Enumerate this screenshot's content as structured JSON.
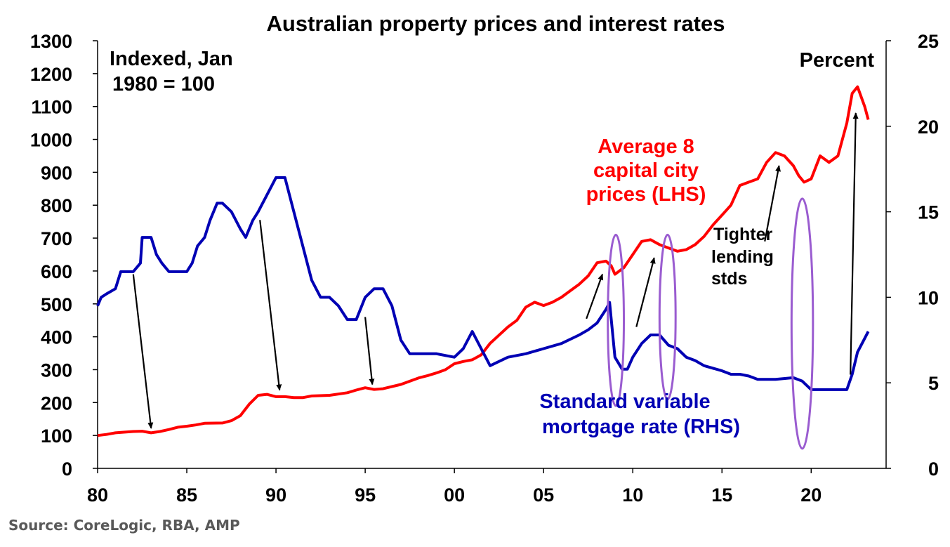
{
  "chart_data": {
    "type": "line",
    "title": "Australian property prices and interest rates",
    "left_axis_label_line1": "Indexed, Jan",
    "left_axis_label_line2": "1980 = 100",
    "right_axis_label": "Percent",
    "ylim_left": [
      0,
      1300
    ],
    "ylim_right": [
      0,
      25
    ],
    "xlim": [
      1980,
      2024.2
    ],
    "left_ticks": [
      0,
      100,
      200,
      300,
      400,
      500,
      600,
      700,
      800,
      900,
      1000,
      1100,
      1200,
      1300
    ],
    "right_ticks": [
      0,
      5,
      10,
      15,
      20,
      25
    ],
    "x_ticks": [
      1980,
      1985,
      1990,
      1995,
      2000,
      2005,
      2010,
      2015,
      2020
    ],
    "x_tick_labels": [
      "80",
      "85",
      "90",
      "95",
      "00",
      "05",
      "10",
      "15",
      "20"
    ],
    "colors": {
      "prices": "#ff0000",
      "rate": "#0000b4",
      "ellipse": "#9a5cd0",
      "arrow": "#000000"
    },
    "series": [
      {
        "name": "Average 8 capital city prices (LHS)",
        "axis": "left",
        "color": "#ff0000",
        "x": [
          1980,
          1980.5,
          1981,
          1982,
          1982.5,
          1983,
          1983.5,
          1984,
          1984.5,
          1985,
          1985.5,
          1986,
          1987,
          1987.5,
          1988,
          1988.5,
          1989,
          1989.5,
          1990,
          1990.5,
          1991,
          1991.5,
          1992,
          1993,
          1994,
          1994.5,
          1995,
          1995.5,
          1996,
          1997,
          1997.5,
          1998,
          1998.5,
          1999,
          1999.5,
          2000,
          2000.5,
          2001,
          2001.5,
          2002,
          2002.5,
          2003,
          2003.5,
          2004,
          2004.5,
          2005,
          2005.5,
          2006,
          2006.5,
          2007,
          2007.5,
          2008,
          2008.5,
          2008.8,
          2009,
          2009.5,
          2010,
          2010.5,
          2011,
          2011.5,
          2012,
          2012.5,
          2013,
          2013.5,
          2014,
          2014.5,
          2015,
          2015.5,
          2016,
          2016.5,
          2017,
          2017.5,
          2018,
          2018.5,
          2019,
          2019.3,
          2019.6,
          2020,
          2020.5,
          2021,
          2021.5,
          2022,
          2022.3,
          2022.6,
          2023,
          2023.2
        ],
        "values": [
          100,
          103,
          108,
          112,
          113,
          108,
          112,
          118,
          125,
          128,
          132,
          137,
          138,
          145,
          160,
          195,
          222,
          225,
          218,
          218,
          215,
          215,
          220,
          222,
          230,
          238,
          245,
          240,
          242,
          255,
          265,
          275,
          282,
          290,
          300,
          318,
          325,
          330,
          345,
          380,
          405,
          430,
          450,
          490,
          505,
          495,
          505,
          520,
          540,
          560,
          585,
          625,
          630,
          615,
          590,
          610,
          650,
          690,
          695,
          680,
          670,
          660,
          665,
          680,
          705,
          740,
          770,
          800,
          860,
          870,
          880,
          930,
          960,
          950,
          920,
          890,
          870,
          880,
          950,
          930,
          950,
          1050,
          1140,
          1160,
          1100,
          1060
        ]
      },
      {
        "name": "Standard variable mortgage rate (RHS)",
        "axis": "right",
        "color": "#0000b4",
        "x": [
          1980,
          1980.2,
          1980.5,
          1981,
          1981.3,
          1982,
          1982.4,
          1982.5,
          1983,
          1983.3,
          1983.6,
          1984,
          1984.5,
          1985,
          1985.3,
          1985.6,
          1986,
          1986.3,
          1986.7,
          1987,
          1987.5,
          1988,
          1988.3,
          1988.7,
          1989,
          1989.5,
          1990,
          1990.5,
          1991,
          1991.5,
          1992,
          1992.5,
          1993,
          1993.5,
          1994,
          1994.5,
          1995,
          1995.5,
          1996,
          1996.5,
          1997,
          1997.5,
          1998,
          1999,
          2000,
          2000.5,
          2001,
          2001.5,
          2002,
          2003,
          2004,
          2005,
          2006,
          2007,
          2007.5,
          2008,
          2008.5,
          2008.7,
          2009,
          2009.4,
          2009.7,
          2010,
          2010.5,
          2011,
          2011.5,
          2012,
          2012.5,
          2013,
          2013.5,
          2014,
          2015,
          2015.5,
          2016,
          2016.5,
          2017,
          2018,
          2019,
          2019.5,
          2019.8,
          2020,
          2021,
          2022,
          2022.3,
          2022.6,
          2023,
          2023.2
        ],
        "values": [
          9.5,
          10.0,
          10.2,
          10.5,
          11.5,
          11.5,
          12.0,
          13.5,
          13.5,
          12.5,
          12.0,
          11.5,
          11.5,
          11.5,
          12.0,
          13.0,
          13.5,
          14.5,
          15.5,
          15.5,
          15.0,
          14.0,
          13.5,
          14.5,
          15.0,
          16.0,
          17.0,
          17.0,
          15.0,
          13.0,
          11.0,
          10.0,
          10.0,
          9.5,
          8.7,
          8.7,
          10.0,
          10.5,
          10.5,
          9.5,
          7.5,
          6.7,
          6.7,
          6.7,
          6.5,
          7.0,
          8.0,
          7.0,
          6.0,
          6.5,
          6.7,
          7.0,
          7.3,
          7.8,
          8.1,
          8.5,
          9.3,
          9.7,
          6.5,
          5.8,
          5.8,
          6.5,
          7.3,
          7.8,
          7.8,
          7.2,
          7.0,
          6.5,
          6.3,
          6.0,
          5.7,
          5.5,
          5.5,
          5.4,
          5.2,
          5.2,
          5.3,
          5.1,
          4.8,
          4.6,
          4.6,
          4.6,
          5.5,
          6.8,
          7.6,
          8.0
        ]
      }
    ],
    "annotations": {
      "prices_label": [
        "Average 8",
        "capital city",
        "prices (LHS)"
      ],
      "rate_label": [
        "Standard variable",
        "mortgage rate (RHS)"
      ],
      "lending_label": [
        "Tighter",
        "lending",
        "stds"
      ]
    },
    "arrows": [
      {
        "from": [
          1982.0,
          590
        ],
        "to": [
          1983.0,
          122
        ]
      },
      {
        "from": [
          1989.1,
          755
        ],
        "to": [
          1990.2,
          238
        ]
      },
      {
        "from": [
          1995.0,
          460
        ],
        "to": [
          1995.4,
          255
        ]
      },
      {
        "from": [
          2007.4,
          455
        ],
        "to": [
          2008.3,
          590
        ]
      },
      {
        "from": [
          2010.2,
          430
        ],
        "to": [
          2011.2,
          640
        ]
      },
      {
        "from": [
          2017.4,
          690
        ],
        "to": [
          2018.2,
          920
        ]
      },
      {
        "from": [
          2022.2,
          285
        ],
        "to": [
          2022.5,
          1080
        ]
      }
    ],
    "ellipses": [
      {
        "center": [
          2009.05,
          450
        ],
        "semi_x": 0.45,
        "semi_y": 260
      },
      {
        "center": [
          2011.95,
          460
        ],
        "semi_x": 0.45,
        "semi_y": 250
      },
      {
        "center": [
          2019.5,
          440
        ],
        "semi_x": 0.6,
        "semi_y": 380
      }
    ]
  },
  "source": "Source: CoreLogic, RBA, AMP"
}
